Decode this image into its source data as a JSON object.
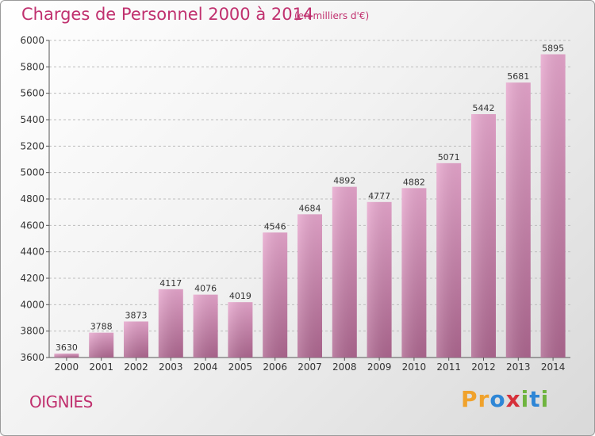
{
  "header": {
    "title": "Charges de Personnel 2000 à 2014",
    "subtitle": "(en milliers d'€)"
  },
  "place": "OIGNIES",
  "logo": {
    "text": "Proxiti"
  },
  "colors": {
    "title": "#c0306e",
    "bar_top": "#e7a6cd",
    "bar_bottom": "#ae6790",
    "grid": "#bdbdbd"
  },
  "chart_data": {
    "type": "bar",
    "title": "Charges de Personnel 2000 à 2014",
    "subtitle": "(en milliers d'€)",
    "xlabel": "",
    "ylabel": "",
    "categories": [
      "2000",
      "2001",
      "2002",
      "2003",
      "2004",
      "2005",
      "2006",
      "2007",
      "2008",
      "2009",
      "2010",
      "2011",
      "2012",
      "2013",
      "2014"
    ],
    "values": [
      3630,
      3788,
      3873,
      4117,
      4076,
      4019,
      4546,
      4684,
      4892,
      4777,
      4882,
      5071,
      5442,
      5681,
      5895
    ],
    "ylim": [
      3600,
      6000
    ],
    "yticks": [
      3600,
      3800,
      4000,
      4200,
      4400,
      4600,
      4800,
      5000,
      5200,
      5400,
      5600,
      5800,
      6000
    ],
    "grid": "horizontal-dashed",
    "data_labels": true
  }
}
